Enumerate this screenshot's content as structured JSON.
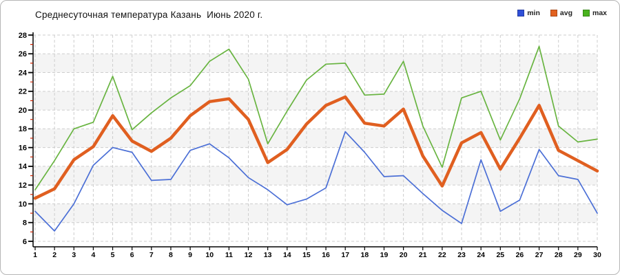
{
  "title": "Среднесуточная температура Казань  Июнь 2020 г.",
  "legend": {
    "items": [
      {
        "label": "min",
        "color": "#2f4fd8"
      },
      {
        "label": "avg",
        "color": "#e2611f"
      },
      {
        "label": "max",
        "color": "#49b31e"
      }
    ]
  },
  "colors": {
    "min_line": "#4b6fd6",
    "avg_line": "#e05f20",
    "max_line": "#68b440",
    "grid": "#cdcdcd",
    "band": "#f4f4f4",
    "axis": "#000000",
    "minor_tick": "#cc2200"
  },
  "chart_data": {
    "type": "line",
    "title": "Среднесуточная температура Казань  Июнь 2020 г.",
    "xlabel": "",
    "ylabel": "",
    "ylim": [
      6,
      28
    ],
    "ytick_step": 2,
    "grid": true,
    "legend_position": "top-right",
    "x": [
      1,
      2,
      3,
      4,
      5,
      6,
      7,
      8,
      9,
      10,
      11,
      12,
      13,
      14,
      15,
      16,
      17,
      18,
      19,
      20,
      21,
      22,
      23,
      24,
      25,
      26,
      27,
      28,
      29,
      30
    ],
    "series": [
      {
        "name": "min",
        "values": [
          9.2,
          7.1,
          10.0,
          14.1,
          16.0,
          15.5,
          12.5,
          12.6,
          15.7,
          16.4,
          14.9,
          12.8,
          11.5,
          9.9,
          10.5,
          11.7,
          17.7,
          15.5,
          12.9,
          13.0,
          11.1,
          9.3,
          7.9,
          14.7,
          9.2,
          10.4,
          15.8,
          13.0,
          12.6,
          9.0
        ]
      },
      {
        "name": "avg",
        "values": [
          10.6,
          11.6,
          14.7,
          16.1,
          19.4,
          16.7,
          15.6,
          17.0,
          19.4,
          20.9,
          21.2,
          19.0,
          14.4,
          15.8,
          18.5,
          20.5,
          21.4,
          18.6,
          18.3,
          20.1,
          15.1,
          11.9,
          16.5,
          17.6,
          13.7,
          17.0,
          20.5,
          15.7,
          14.6,
          13.5
        ]
      },
      {
        "name": "max",
        "values": [
          11.5,
          14.6,
          18.0,
          18.7,
          23.6,
          17.9,
          19.7,
          21.3,
          22.6,
          25.2,
          26.5,
          23.3,
          16.4,
          19.9,
          23.2,
          24.9,
          25.0,
          21.6,
          21.7,
          25.2,
          18.3,
          13.9,
          21.3,
          22.0,
          16.8,
          21.2,
          26.8,
          18.3,
          16.6,
          16.9
        ]
      }
    ]
  }
}
